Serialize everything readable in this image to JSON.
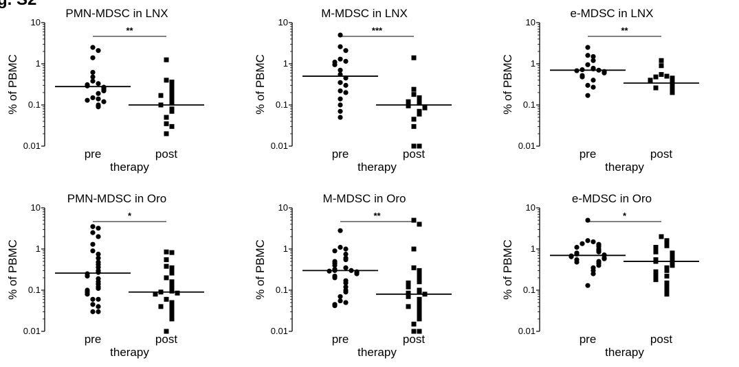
{
  "figure_label": "g. S2",
  "chart_data": [
    {
      "type": "scatter",
      "title": "PMN-MDSC in LNX",
      "xlabel": "therapy",
      "ylabel": "% of PBMC",
      "yscale": "log",
      "ylim": [
        0.01,
        10
      ],
      "yticks": [
        "0.01",
        "0.1",
        "1",
        "10"
      ],
      "categories": [
        "pre",
        "post"
      ],
      "significance": "**",
      "series": [
        {
          "category": "pre",
          "marker": "circle",
          "median": 0.28,
          "values": [
            2.5,
            2.1,
            1.4,
            0.62,
            0.48,
            0.38,
            0.33,
            0.31,
            0.29,
            0.27,
            0.26,
            0.24,
            0.22,
            0.19,
            0.15,
            0.14,
            0.13,
            0.12,
            0.1,
            0.09
          ]
        },
        {
          "category": "post",
          "marker": "square",
          "median": 0.1,
          "values": [
            1.25,
            0.4,
            0.36,
            0.3,
            0.25,
            0.2,
            0.19,
            0.17,
            0.15,
            0.12,
            0.11,
            0.1,
            0.08,
            0.07,
            0.05,
            0.035,
            0.03,
            0.02
          ]
        }
      ]
    },
    {
      "type": "scatter",
      "title": "M-MDSC in LNX",
      "xlabel": "therapy",
      "ylabel": "% of PBMC",
      "yscale": "log",
      "ylim": [
        0.01,
        10
      ],
      "yticks": [
        "0.01",
        "0.1",
        "1",
        "10"
      ],
      "categories": [
        "pre",
        "post"
      ],
      "significance": "***",
      "series": [
        {
          "category": "pre",
          "marker": "circle",
          "median": 0.5,
          "values": [
            5.0,
            2.6,
            2.1,
            1.3,
            1.15,
            1.1,
            0.95,
            0.7,
            0.55,
            0.45,
            0.35,
            0.3,
            0.22,
            0.2,
            0.14,
            0.1,
            0.07,
            0.05
          ]
        },
        {
          "category": "post",
          "marker": "square",
          "median": 0.1,
          "values": [
            1.4,
            0.24,
            0.18,
            0.15,
            0.14,
            0.12,
            0.11,
            0.1,
            0.095,
            0.09,
            0.085,
            0.07,
            0.06,
            0.045,
            0.03,
            0.01,
            0.01
          ]
        }
      ]
    },
    {
      "type": "scatter",
      "title": "e-MDSC in LNX",
      "xlabel": "therapy",
      "ylabel": "% of PBMC",
      "yscale": "log",
      "ylim": [
        0.01,
        10
      ],
      "yticks": [
        "0.01",
        "0.1",
        "1",
        "10"
      ],
      "categories": [
        "pre",
        "post"
      ],
      "significance": "**",
      "series": [
        {
          "category": "pre",
          "marker": "circle",
          "median": 0.7,
          "values": [
            2.5,
            1.6,
            1.5,
            1.2,
            0.95,
            0.78,
            0.75,
            0.72,
            0.7,
            0.68,
            0.65,
            0.6,
            0.52,
            0.48,
            0.4,
            0.3,
            0.27,
            0.17
          ]
        },
        {
          "category": "post",
          "marker": "square",
          "median": 0.34,
          "values": [
            1.2,
            0.9,
            0.55,
            0.5,
            0.48,
            0.45,
            0.42,
            0.4,
            0.37,
            0.35,
            0.33,
            0.3,
            0.28,
            0.26,
            0.25,
            0.23,
            0.22,
            0.2
          ]
        }
      ]
    },
    {
      "type": "scatter",
      "title": "PMN-MDSC in Oro",
      "xlabel": "therapy",
      "ylabel": "% of PBMC",
      "yscale": "log",
      "ylim": [
        0.01,
        10
      ],
      "yticks": [
        "0.01",
        "0.1",
        "1",
        "10"
      ],
      "categories": [
        "pre",
        "post"
      ],
      "significance": "*",
      "series": [
        {
          "category": "pre",
          "marker": "circle",
          "median": 0.26,
          "values": [
            3.5,
            3.2,
            2.5,
            2.0,
            1.3,
            0.9,
            0.75,
            0.6,
            0.48,
            0.42,
            0.36,
            0.3,
            0.27,
            0.25,
            0.22,
            0.19,
            0.16,
            0.14,
            0.12,
            0.11,
            0.1,
            0.09,
            0.08,
            0.06,
            0.06,
            0.045,
            0.04,
            0.03,
            0.03
          ]
        },
        {
          "category": "post",
          "marker": "square",
          "median": 0.09,
          "values": [
            0.85,
            0.82,
            0.55,
            0.38,
            0.35,
            0.3,
            0.26,
            0.2,
            0.16,
            0.14,
            0.12,
            0.1,
            0.095,
            0.09,
            0.085,
            0.08,
            0.06,
            0.05,
            0.045,
            0.04,
            0.035,
            0.03,
            0.025,
            0.02,
            0.01
          ]
        }
      ]
    },
    {
      "type": "scatter",
      "title": "M-MDSC in Oro",
      "xlabel": "therapy",
      "ylabel": "% of PBMC",
      "yscale": "log",
      "ylim": [
        0.01,
        10
      ],
      "yticks": [
        "0.01",
        "0.1",
        "1",
        "10"
      ],
      "categories": [
        "pre",
        "post"
      ],
      "significance": "**",
      "series": [
        {
          "category": "pre",
          "marker": "circle",
          "median": 0.3,
          "values": [
            2.8,
            1.1,
            1.0,
            0.9,
            0.75,
            0.6,
            0.55,
            0.5,
            0.45,
            0.4,
            0.35,
            0.32,
            0.3,
            0.3,
            0.29,
            0.28,
            0.27,
            0.25,
            0.22,
            0.2,
            0.17,
            0.15,
            0.12,
            0.1,
            0.09,
            0.07,
            0.055,
            0.05,
            0.045,
            0.042
          ]
        },
        {
          "category": "post",
          "marker": "square",
          "median": 0.08,
          "values": [
            5.0,
            4.0,
            1.0,
            0.35,
            0.3,
            0.25,
            0.22,
            0.18,
            0.16,
            0.15,
            0.13,
            0.12,
            0.1,
            0.09,
            0.085,
            0.08,
            0.07,
            0.06,
            0.05,
            0.045,
            0.04,
            0.035,
            0.03,
            0.025,
            0.02,
            0.015,
            0.01,
            0.01
          ]
        }
      ]
    },
    {
      "type": "scatter",
      "title": "e-MDSC in Oro",
      "xlabel": "therapy",
      "ylabel": "% of PBMC",
      "yscale": "log",
      "ylim": [
        0.01,
        10
      ],
      "yticks": [
        "0.01",
        "0.1",
        "1",
        "10"
      ],
      "categories": [
        "pre",
        "post"
      ],
      "significance": "*",
      "series": [
        {
          "category": "pre",
          "marker": "circle",
          "median": 0.7,
          "values": [
            5.0,
            1.6,
            1.5,
            1.35,
            1.3,
            1.2,
            1.15,
            1.1,
            1.0,
            0.95,
            0.9,
            0.85,
            0.8,
            0.78,
            0.75,
            0.72,
            0.7,
            0.68,
            0.65,
            0.6,
            0.58,
            0.55,
            0.5,
            0.48,
            0.45,
            0.4,
            0.35,
            0.3,
            0.25,
            0.13
          ]
        },
        {
          "category": "post",
          "marker": "square",
          "median": 0.5,
          "values": [
            2.0,
            1.6,
            1.3,
            1.2,
            1.1,
            1.0,
            0.9,
            0.85,
            0.8,
            0.75,
            0.7,
            0.65,
            0.6,
            0.55,
            0.5,
            0.48,
            0.45,
            0.4,
            0.35,
            0.3,
            0.28,
            0.25,
            0.22,
            0.2,
            0.18,
            0.15,
            0.12,
            0.1,
            0.08
          ]
        }
      ]
    }
  ]
}
